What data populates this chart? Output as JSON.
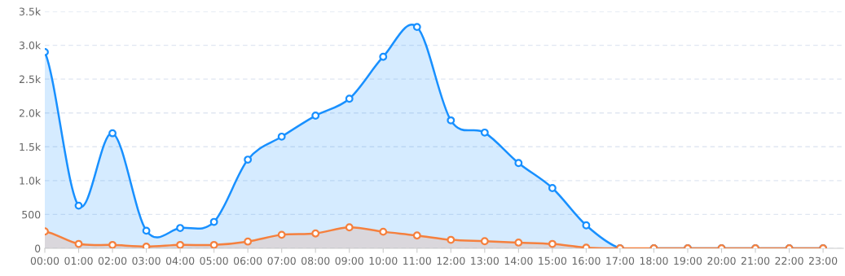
{
  "chart_data": {
    "type": "area",
    "categories": [
      "00:00",
      "01:00",
      "02:00",
      "03:00",
      "04:00",
      "05:00",
      "06:00",
      "07:00",
      "08:00",
      "09:00",
      "10:00",
      "11:00",
      "12:00",
      "13:00",
      "14:00",
      "15:00",
      "16:00",
      "17:00",
      "18:00",
      "19:00",
      "20:00",
      "21:00",
      "22:00",
      "23:00"
    ],
    "series": [
      {
        "color": "#1890ff",
        "values": [
          2900,
          630,
          1700,
          260,
          300,
          390,
          1310,
          1650,
          1960,
          2210,
          2830,
          3270,
          1890,
          1710,
          1260,
          890,
          340,
          0,
          0,
          0,
          0,
          0,
          0,
          0
        ]
      },
      {
        "color": "#f5803e",
        "values": [
          250,
          65,
          50,
          25,
          50,
          50,
          100,
          200,
          220,
          310,
          245,
          190,
          125,
          105,
          85,
          65,
          10,
          0,
          0,
          0,
          0,
          0,
          0,
          0
        ]
      }
    ],
    "ylim": [
      0,
      3500
    ],
    "yticks": [
      0,
      500,
      {
        "value": 1000,
        "label": "1.0k"
      },
      {
        "value": 1500,
        "label": "1.5k"
      },
      {
        "value": 2000,
        "label": "2.0k"
      },
      {
        "value": 2500,
        "label": "2.5k"
      },
      {
        "value": 3000,
        "label": "3.0k"
      },
      {
        "value": 3500,
        "label": "3.5k"
      }
    ],
    "grid": "y",
    "marker": "circle",
    "line_style": "solid"
  }
}
